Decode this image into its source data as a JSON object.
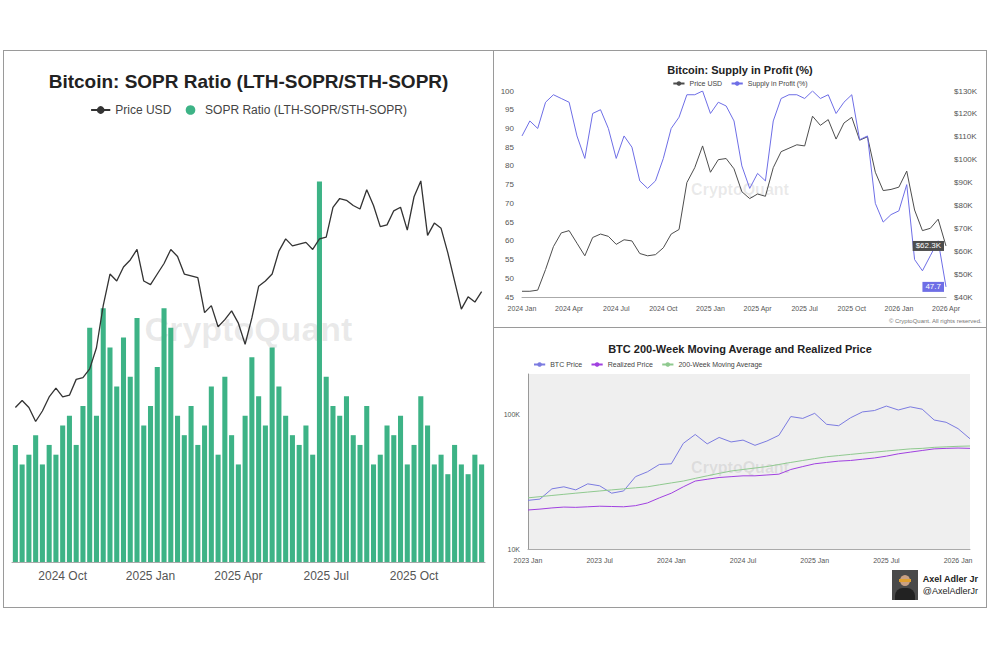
{
  "chart_data": [
    {
      "type": "bar",
      "title": "Bitcoin: SOPR Ratio (LTH-SOPR/STH-SOPR)",
      "watermark": "CryptoQuant",
      "legend": "top",
      "grid": false,
      "tick_labels": "x",
      "categories": [
        null,
        null,
        null,
        null,
        null,
        null,
        null,
        "2024 Oct",
        null,
        null,
        null,
        null,
        null,
        null,
        null,
        null,
        null,
        null,
        null,
        null,
        "2025 Jan",
        null,
        null,
        null,
        null,
        null,
        null,
        null,
        null,
        null,
        null,
        null,
        null,
        "2025 Apr",
        null,
        null,
        null,
        null,
        null,
        null,
        null,
        null,
        null,
        null,
        null,
        null,
        "2025 Jul",
        null,
        null,
        null,
        null,
        null,
        null,
        null,
        null,
        null,
        null,
        null,
        null,
        "2025 Oct",
        null,
        null,
        null,
        null,
        null,
        null,
        null,
        null,
        null,
        null
      ],
      "ylim": [
        15000,
        140000
      ],
      "y2lim": [
        0,
        4.5
      ],
      "series": [
        {
          "name": "Price USD",
          "type": "line",
          "color": "#333333",
          "line_style": "solid",
          "values": [
            59000,
            61000,
            59000,
            55000,
            58000,
            62000,
            64500,
            62000,
            62500,
            67000,
            67500,
            70000,
            76000,
            88000,
            97000,
            95000,
            99000,
            101000,
            104000,
            95000,
            94000,
            97000,
            100000,
            104000,
            102000,
            97000,
            96500,
            96000,
            86000,
            88000,
            82000,
            84000,
            86500,
            83000,
            77000,
            84500,
            93500,
            95000,
            97000,
            103500,
            107000,
            105000,
            105500,
            106000,
            104000,
            107000,
            107500,
            116000,
            118500,
            118000,
            116500,
            115500,
            121000,
            116500,
            110500,
            111000,
            115000,
            116000,
            109500,
            119000,
            123500,
            108000,
            111500,
            110000,
            103000,
            95000,
            87000,
            90500,
            89000,
            92000
          ]
        },
        {
          "name": "SOPR Ratio (LTH-SOPR/STH-SOPR)",
          "type": "bar",
          "axis": "y2",
          "color": "#3db386",
          "marker": "circle",
          "values": [
            1.2,
            1.0,
            1.1,
            1.3,
            1.0,
            1.2,
            1.1,
            1.4,
            1.5,
            1.2,
            1.6,
            2.4,
            1.5,
            2.6,
            2.2,
            1.8,
            2.3,
            1.9,
            2.5,
            1.4,
            1.6,
            2.0,
            2.6,
            2.4,
            1.5,
            1.3,
            1.6,
            1.2,
            1.4,
            1.8,
            1.1,
            1.9,
            1.3,
            1.0,
            1.5,
            2.1,
            1.7,
            1.4,
            2.2,
            1.8,
            1.5,
            1.3,
            1.2,
            1.4,
            1.1,
            3.9,
            1.9,
            1.6,
            1.5,
            1.7,
            1.3,
            1.2,
            1.6,
            1.0,
            1.1,
            1.4,
            1.3,
            1.5,
            1.0,
            1.2,
            1.7,
            1.4,
            1.0,
            1.1,
            0.9,
            1.2,
            1.0,
            0.9,
            1.1,
            1.0
          ]
        }
      ]
    },
    {
      "type": "line",
      "title": "Bitcoin: Supply in Profit (%)",
      "watermark": "CryptoQuant",
      "footnote": "© CryptoQuant. All rights reserved.",
      "legend": "top",
      "grid": false,
      "categories": [
        "2024 Jan",
        null,
        null,
        null,
        null,
        null,
        "2024 Apr",
        null,
        null,
        null,
        null,
        null,
        "2024 Jul",
        null,
        null,
        null,
        null,
        null,
        "2024 Oct",
        null,
        null,
        null,
        null,
        null,
        "2025 Jan",
        null,
        null,
        null,
        null,
        null,
        "2025 Apr",
        null,
        null,
        null,
        null,
        null,
        "2025 Jul",
        null,
        null,
        null,
        null,
        null,
        "2025 Oct",
        null,
        null,
        null,
        null,
        null,
        "2026 Jan",
        null,
        null,
        null,
        null,
        null,
        "2026 Apr"
      ],
      "ylim": [
        45,
        100
      ],
      "yticks": [
        45,
        50,
        55,
        60,
        65,
        70,
        75,
        80,
        85,
        90,
        95,
        100
      ],
      "y2lim": [
        40000,
        130000
      ],
      "y2ticks": [
        {
          "value": 40000,
          "label": "$40K"
        },
        {
          "value": 50000,
          "label": "$50K"
        },
        {
          "value": 60000,
          "label": "$60K"
        },
        {
          "value": 70000,
          "label": "$70K"
        },
        {
          "value": 80000,
          "label": "$80K"
        },
        {
          "value": 90000,
          "label": "$90K"
        },
        {
          "value": 100000,
          "label": "$100K"
        },
        {
          "value": 110000,
          "label": "$110K"
        },
        {
          "value": 120000,
          "label": "$120K"
        },
        {
          "value": 130000,
          "label": "$130K"
        }
      ],
      "series": [
        {
          "name": "Price USD",
          "axis": "y2",
          "color": "#4d4d4d",
          "line_style": "solid",
          "values": [
            42500,
            42500,
            43000,
            52000,
            62000,
            68000,
            69000,
            63500,
            58000,
            66000,
            67500,
            66500,
            63000,
            65000,
            64500,
            59000,
            58000,
            58500,
            61500,
            67500,
            69500,
            90000,
            96500,
            106000,
            94500,
            100000,
            100500,
            96000,
            86000,
            83000,
            85000,
            84000,
            96500,
            103500,
            105000,
            106500,
            106000,
            119000,
            115000,
            117500,
            109000,
            116000,
            118500,
            108500,
            110000,
            94500,
            86500,
            87000,
            88000,
            95000,
            78000,
            69000,
            70000,
            74000,
            62300
          ],
          "value_labels": [
            null,
            null,
            null,
            null,
            null,
            null,
            null,
            null,
            null,
            null,
            null,
            null,
            null,
            null,
            null,
            null,
            null,
            null,
            null,
            null,
            null,
            null,
            null,
            null,
            null,
            null,
            null,
            null,
            null,
            null,
            null,
            null,
            null,
            null,
            null,
            null,
            null,
            null,
            null,
            null,
            null,
            null,
            null,
            null,
            null,
            null,
            null,
            null,
            null,
            null,
            null,
            null,
            null,
            null,
            "$62.3K"
          ]
        },
        {
          "name": "Supply in Profit (%)",
          "color": "#6e6ee6",
          "line_style": "solid",
          "values": [
            88,
            92,
            90,
            97,
            99,
            98,
            97,
            88,
            82,
            94,
            95,
            90,
            82,
            88,
            85,
            76,
            74,
            76,
            82,
            90,
            93,
            99,
            99,
            100,
            94,
            97,
            96,
            92,
            80,
            74,
            78,
            76,
            92,
            98,
            99,
            99,
            98,
            100,
            98,
            99,
            94,
            97,
            99,
            87,
            88,
            70,
            65,
            67,
            68,
            75,
            55,
            52,
            56,
            60,
            47.7
          ],
          "value_labels": [
            null,
            null,
            null,
            null,
            null,
            null,
            null,
            null,
            null,
            null,
            null,
            null,
            null,
            null,
            null,
            null,
            null,
            null,
            null,
            null,
            null,
            null,
            null,
            null,
            null,
            null,
            null,
            null,
            null,
            null,
            null,
            null,
            null,
            null,
            null,
            null,
            null,
            null,
            null,
            null,
            null,
            null,
            null,
            null,
            null,
            null,
            null,
            null,
            null,
            null,
            null,
            null,
            null,
            null,
            "47.7"
          ]
        }
      ]
    },
    {
      "type": "line",
      "title": "BTC 200-Week Moving Average and Realized Price",
      "watermark": "CryptoQuant",
      "legend": "top-left",
      "grid": false,
      "log": "y",
      "categories": [
        "2023 Jan",
        null,
        null,
        null,
        null,
        null,
        "2023 Jul",
        null,
        null,
        null,
        null,
        null,
        "2024 Jan",
        null,
        null,
        null,
        null,
        null,
        "2024 Jul",
        null,
        null,
        null,
        null,
        null,
        "2025 Jan",
        null,
        null,
        null,
        null,
        null,
        "2025 Jul",
        null,
        null,
        null,
        null,
        null,
        "2026 Jan",
        null
      ],
      "ylim": [
        10000,
        200000
      ],
      "yticks": [
        {
          "value": 10000,
          "label": "10K"
        },
        {
          "value": 100000,
          "label": "100K"
        }
      ],
      "series": [
        {
          "name": "BTC Price",
          "color": "#7b7be0",
          "line_style": "solid",
          "values": [
            23000,
            23500,
            28000,
            29000,
            27500,
            30500,
            29500,
            26000,
            27000,
            34500,
            37500,
            42500,
            43000,
            61000,
            71000,
            60500,
            67500,
            62500,
            64500,
            59000,
            63500,
            70000,
            96500,
            93500,
            102000,
            84500,
            82500,
            94500,
            104500,
            107000,
            115500,
            108000,
            114000,
            109500,
            91000,
            87500,
            78500,
            66000
          ]
        },
        {
          "name": "Realized Price",
          "color": "#a040e0",
          "line_style": "solid",
          "values": [
            19500,
            19800,
            20200,
            20500,
            20400,
            20600,
            20800,
            20700,
            20600,
            21000,
            22000,
            24000,
            26000,
            29000,
            32000,
            33000,
            34000,
            34500,
            35000,
            35000,
            35500,
            36000,
            39000,
            41000,
            43000,
            44000,
            45000,
            45500,
            46500,
            47500,
            49000,
            51000,
            52500,
            54000,
            55500,
            56000,
            56300,
            56000
          ]
        },
        {
          "name": "200-Week Moving Average",
          "color": "#8fc98f",
          "line_style": "solid",
          "values": [
            24000,
            24500,
            25000,
            25500,
            26000,
            26500,
            27000,
            27500,
            28000,
            28500,
            29000,
            30000,
            31000,
            32000,
            33500,
            35000,
            36500,
            38000,
            39000,
            40000,
            41000,
            42500,
            44000,
            45500,
            47000,
            48500,
            49500,
            50500,
            51500,
            52500,
            53500,
            54500,
            55500,
            56000,
            57000,
            57500,
            58000,
            58300
          ]
        }
      ]
    }
  ],
  "signature": {
    "name": "Axel Adler Jr",
    "handle": "@AxelAdlerJr"
  }
}
